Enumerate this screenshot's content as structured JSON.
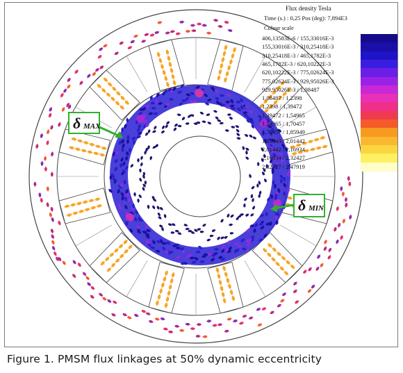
{
  "figure": {
    "caption": "Figure 1. PMSM flux linkages at 50% dynamic eccentricity"
  },
  "legend": {
    "title": "Flux density Tesla",
    "time_line": "Time (s.) : 0,25 Pos (deg): 7,894E3",
    "scale_label": "Colour scale",
    "rows": [
      {
        "range": "406,13583E-6  /  155,33016E-3",
        "color": "#140a8c"
      },
      {
        "range": "155,33016E-3  /  310,25418E-3",
        "color": "#1a0fa8"
      },
      {
        "range": "310,25418E-3  /  465,1782E-3",
        "color": "#1e14c8"
      },
      {
        "range": "465,1782E-3  /  620,10222E-3",
        "color": "#3a1ee0"
      },
      {
        "range": "620,10222E-3  /  775,02624E-3",
        "color": "#6a1ee6"
      },
      {
        "range": "775,02624E-3  /  929,95026E-3",
        "color": "#9a22e6"
      },
      {
        "range": "929,95026E-3  /  1,08487",
        "color": "#c828d8"
      },
      {
        "range": "1,08487  /  1,2398",
        "color": "#e830b8"
      },
      {
        "range": "1,2398  /  1,39472",
        "color": "#f03088"
      },
      {
        "range": "1,39472  /  1,54965",
        "color": "#f03a50"
      },
      {
        "range": "1,54965  /  1,70457",
        "color": "#f55a28"
      },
      {
        "range": "1,70457  /  1,85949",
        "color": "#f89a20"
      },
      {
        "range": "1,85949  /  2,01442",
        "color": "#fab830"
      },
      {
        "range": "2,01442  /  2,16934",
        "color": "#fcd640"
      },
      {
        "range": "2,16934  /  2,32427",
        "color": "#fef060"
      },
      {
        "range": "2,32427  /  2,47919",
        "color": "#fffdc8"
      }
    ]
  },
  "callouts": {
    "delta_max": {
      "symbol": "δ",
      "subscript": "MAX"
    },
    "delta_min": {
      "symbol": "δ",
      "subscript": "MIN"
    }
  },
  "colors": {
    "stator_tooth_flux": "#f7a526",
    "rotor_ring_flux": "#2d22c4",
    "yoke_flux": "#c2287a",
    "callout_border": "#2fb12f",
    "outline": "#444444"
  }
}
